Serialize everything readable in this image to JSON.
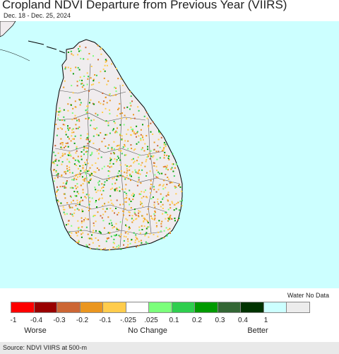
{
  "title": "Cropland NDVI Departure from Previous Year (VIIRS)",
  "subtitle": "Dec. 18 - Dec. 25, 2024",
  "legend": {
    "extra_header": "Water No Data",
    "colors": [
      "#fe0000",
      "#990000",
      "#cc6634",
      "#ea961f",
      "#ffcc4c",
      "#ffffff",
      "#7bff7b",
      "#2fce4e",
      "#009a00",
      "#336634",
      "#003300",
      "#ccffff",
      "#ececec"
    ],
    "ticks": [
      "-1",
      "-0.4",
      "-0.3",
      "-0.2",
      "-0.1",
      "-.025",
      ".025",
      "0.1",
      "0.2",
      "0.3",
      "0.4",
      "1"
    ],
    "labels": {
      "worse": "Worse",
      "no_change": "No Change",
      "better": "Better"
    }
  },
  "map": {
    "water_color": "#ccffff",
    "land_color": "#f0ecee",
    "boundary_color": "#000000"
  },
  "source": "Source: NDVI VIIRS at 500-m"
}
